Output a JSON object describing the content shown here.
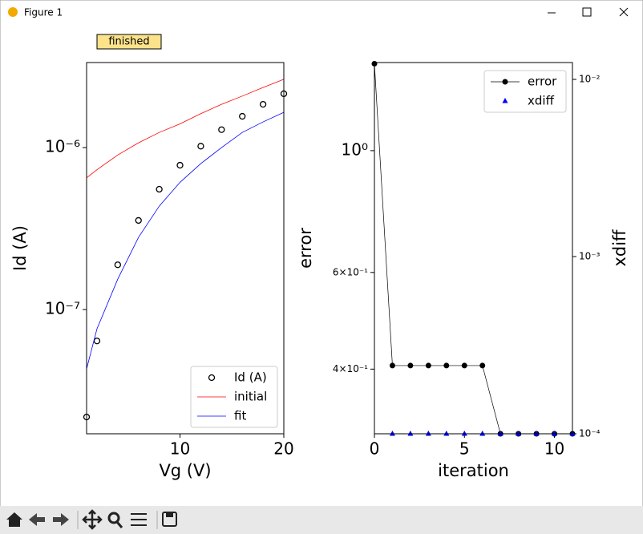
{
  "window": {
    "title": "Figure 1"
  },
  "status": "finished",
  "chart_data": [
    {
      "type": "line",
      "xlabel": "Vg (V)",
      "ylabel": "Id (A)",
      "x": [
        1,
        2,
        4,
        6,
        8,
        10,
        12,
        14,
        16,
        18,
        20
      ],
      "series": [
        {
          "name": "Id (A)",
          "color": "#000000",
          "marker": "open-circle",
          "linestyle": "none",
          "values": [
            2.17e-08,
            6.4e-08,
            1.89e-07,
            3.55e-07,
            5.53e-07,
            7.78e-07,
            1.02e-06,
            1.29e-06,
            1.56e-06,
            1.85e-06,
            2.15e-06
          ]
        },
        {
          "name": "initial",
          "color": "#ff0000",
          "marker": "none",
          "linestyle": "solid",
          "values": [
            6.5e-07,
            7.3e-07,
            9e-07,
            1.07e-06,
            1.24e-06,
            1.4e-06,
            1.62e-06,
            1.85e-06,
            2.08e-06,
            2.35e-06,
            2.64e-06
          ]
        },
        {
          "name": "fit",
          "color": "#0000ff",
          "marker": "none",
          "linestyle": "solid",
          "values": [
            4.3e-08,
            7.6e-08,
            1.54e-07,
            2.79e-07,
            4.35e-07,
            6.1e-07,
            7.96e-07,
            1e-06,
            1.24e-06,
            1.44e-06,
            1.65e-06
          ]
        }
      ],
      "xlim": [
        1,
        20
      ],
      "xticks": [
        10,
        20
      ],
      "ylog": true,
      "ylim": [
        1.71e-08,
        3.35e-06
      ],
      "yticks": [
        {
          "value": 1e-07,
          "label": "10⁻⁷"
        },
        {
          "value": 1e-06,
          "label": "10⁻⁶"
        }
      ],
      "legend": "lower right"
    },
    {
      "type": "line",
      "xlabel": "iteration",
      "ylabel": "error",
      "y2label": "xdiff",
      "x": [
        0,
        1,
        2,
        3,
        4,
        5,
        6,
        7,
        8,
        9,
        10,
        11
      ],
      "series": [
        {
          "name": "error",
          "color": "#000000",
          "marker": "filled-circle",
          "linestyle": "solid",
          "values": [
            1.44,
            0.406,
            0.406,
            0.406,
            0.406,
            0.406,
            0.406,
            0.305,
            0.305,
            0.305,
            0.305,
            0.305
          ]
        },
        {
          "name": "xdiff",
          "color": "#0000ff",
          "marker": "triangle",
          "linestyle": "none",
          "axis": "y2",
          "values": [
            null,
            0.0001,
            0.0001,
            0.0001,
            0.0001,
            0.0001,
            0.0001,
            0.0001,
            0.0001,
            0.0001,
            0.0001,
            0.0001
          ]
        }
      ],
      "xlim": [
        0,
        11
      ],
      "xticks": [
        0,
        5,
        10
      ],
      "ylog": true,
      "ylim": [
        0.305,
        1.447
      ],
      "yticks": [
        {
          "value": 1,
          "label": "10⁰"
        },
        {
          "value": 0.6,
          "label": "6×10⁻¹"
        },
        {
          "value": 0.4,
          "label": "4×10⁻¹"
        }
      ],
      "y2log": true,
      "y2lim": [
        0.0001,
        0.01245
      ],
      "y2ticks": [
        {
          "value": 0.01,
          "label": "10⁻²"
        },
        {
          "value": 0.001,
          "label": "10⁻³"
        },
        {
          "value": 0.0001,
          "label": "10⁻⁴"
        }
      ],
      "legend": "upper right"
    }
  ]
}
